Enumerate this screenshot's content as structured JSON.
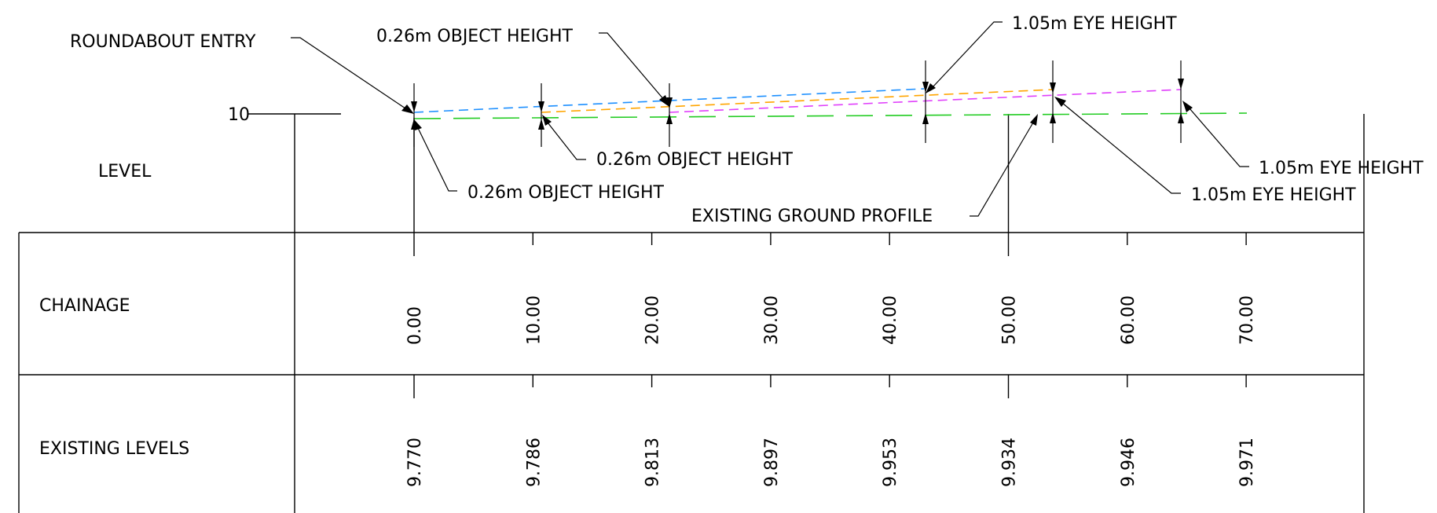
{
  "labels": {
    "roundabout_entry": "ROUNDABOUT ENTRY",
    "object_height": "0.26m OBJECT HEIGHT",
    "eye_height": "1.05m EYE HEIGHT",
    "existing_ground_profile": "EXISTING GROUND PROFILE",
    "level": "LEVEL",
    "datum_level": "10"
  },
  "table": {
    "row_headers": [
      "CHAINAGE",
      "EXISTING LEVELS"
    ],
    "chainage": [
      "0.00",
      "10.00",
      "20.00",
      "30.00",
      "40.00",
      "50.00",
      "60.00",
      "70.00"
    ],
    "existing_levels": [
      "9.770",
      "9.786",
      "9.813",
      "9.897",
      "9.953",
      "9.934",
      "9.946",
      "9.971"
    ]
  },
  "colors": {
    "sight_line_1": "#1E90FF",
    "sight_line_2": "#FFA500",
    "sight_line_3": "#E040FB",
    "ground_profile": "#22CC22",
    "linework": "#000000"
  }
}
